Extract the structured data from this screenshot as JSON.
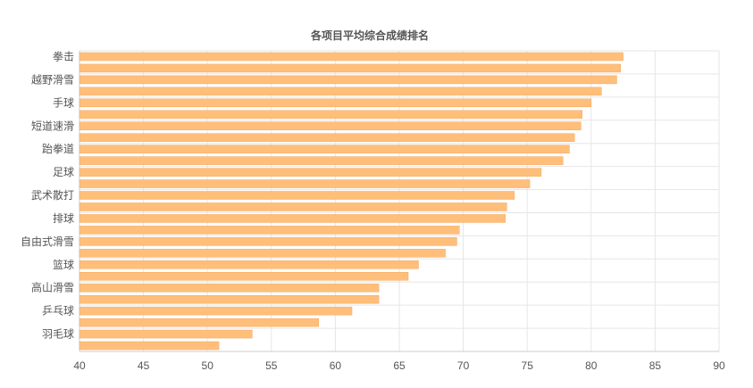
{
  "chart_data": {
    "type": "bar",
    "orientation": "horizontal",
    "title": "各项目平均综合成绩排名",
    "xlim": [
      40,
      90
    ],
    "x_ticks": [
      40,
      45,
      50,
      55,
      60,
      65,
      70,
      75,
      80,
      85,
      90
    ],
    "grid": true,
    "bar_color": "#ffbf7a",
    "bar_border_color": "#f0a860",
    "categories": [
      "拳击",
      "",
      "越野滑雪",
      "",
      "手球",
      "",
      "短道速滑",
      "",
      "跆拳道",
      "",
      "足球",
      "",
      "武术散打",
      "",
      "排球",
      "",
      "自由式滑雪",
      "",
      "篮球",
      "",
      "高山滑雪",
      "",
      "乒乓球",
      "",
      "羽毛球",
      ""
    ],
    "values": [
      82.5,
      82.3,
      82.0,
      80.8,
      80.0,
      79.3,
      79.2,
      78.7,
      78.3,
      77.8,
      76.1,
      75.2,
      74.0,
      73.4,
      73.3,
      69.7,
      69.5,
      68.6,
      66.5,
      65.7,
      63.4,
      63.4,
      61.3,
      58.7,
      53.5,
      50.9
    ]
  }
}
